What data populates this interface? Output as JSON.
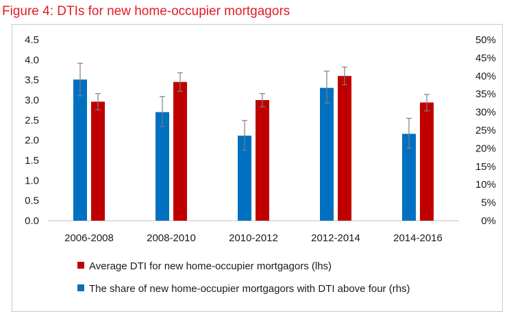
{
  "title": "Figure 4: DTIs for new home-occupier mortgagors",
  "colors": {
    "title": "#e31b23",
    "series_red": "#c00000",
    "series_blue": "#0070c0",
    "error_bar": "#7f7f7f"
  },
  "chart_data": {
    "type": "bar",
    "title": "Figure 4: DTIs for new home-occupier mortgagors",
    "categories": [
      "2006-2008",
      "2008-2010",
      "2010-2012",
      "2012-2014",
      "2014-2016"
    ],
    "left_axis": {
      "min": 0,
      "max": 4.5,
      "ticks": [
        "0.0",
        "0.5",
        "1.0",
        "1.5",
        "2.0",
        "2.5",
        "3.0",
        "3.5",
        "4.0",
        "4.5"
      ]
    },
    "right_axis": {
      "min": 0,
      "max": 50,
      "ticks": [
        "0%",
        "5%",
        "10%",
        "15%",
        "20%",
        "25%",
        "30%",
        "35%",
        "40%",
        "45%",
        "50%"
      ]
    },
    "series": [
      {
        "name": "The share of new home-occupier mortgagors with DTI above four (rhs)",
        "axis": "right",
        "color": "#0070c0",
        "values": [
          39,
          30,
          23.5,
          36.7,
          24
        ],
        "error_low": [
          34.5,
          26,
          19.5,
          32.5,
          20
        ],
        "error_high": [
          43.5,
          34.3,
          27.7,
          41.3,
          28.3
        ]
      },
      {
        "name": "Average DTI for new home-occupier mortgagors (lhs)",
        "axis": "left",
        "color": "#c00000",
        "values": [
          2.96,
          3.45,
          3.0,
          3.6,
          2.94
        ],
        "error_low": [
          2.76,
          3.22,
          2.83,
          3.38,
          2.73
        ],
        "error_high": [
          3.16,
          3.68,
          3.16,
          3.82,
          3.14
        ]
      }
    ],
    "legend": {
      "position": "bottom",
      "items": [
        {
          "label": "Average DTI for new home-occupier mortgagors (lhs)",
          "color": "#c00000"
        },
        {
          "label": "The share of new home-occupier mortgagors with DTI above four (rhs)",
          "color": "#0070c0"
        }
      ]
    },
    "grid": false,
    "error_bars": true
  }
}
